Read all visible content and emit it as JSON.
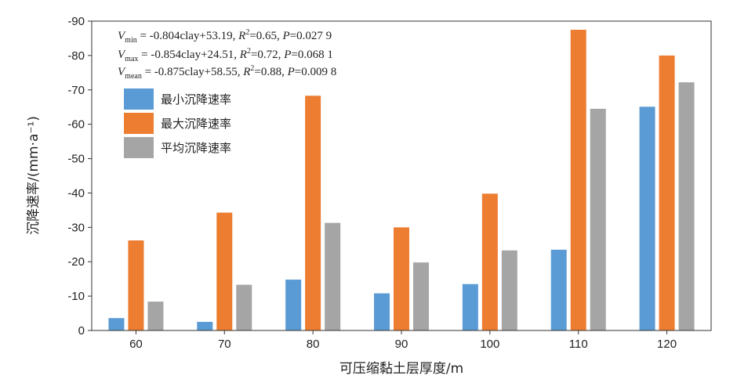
{
  "chart_data": {
    "type": "bar",
    "categories": [
      "60",
      "70",
      "80",
      "90",
      "100",
      "110",
      "120"
    ],
    "series": [
      {
        "name": "最小沉降速率",
        "color": "#5b9bd5",
        "values": [
          -3.6,
          -2.5,
          -14.8,
          -10.8,
          -13.5,
          -23.5,
          -65.1
        ]
      },
      {
        "name": "最大沉降速率",
        "color": "#ed7d31",
        "values": [
          -26.2,
          -34.3,
          -68.3,
          -30.0,
          -39.8,
          -87.5,
          -80.0
        ]
      },
      {
        "name": "平均沉降速率",
        "color": "#a5a5a5",
        "values": [
          -8.4,
          -13.3,
          -31.3,
          -19.8,
          -23.3,
          -64.5,
          -72.2
        ]
      }
    ],
    "xlabel": "可压缩黏土层厚度/m",
    "ylabel": "沉降速率/(mm·a⁻¹)",
    "ylim": [
      0,
      -90
    ],
    "yticks": [
      "0",
      "-10",
      "-20",
      "-30",
      "-40",
      "-50",
      "-60",
      "-70",
      "-80",
      "-90"
    ],
    "grid": false,
    "legend_position": "top-left",
    "equations": [
      {
        "var": "V",
        "sub": "min",
        "op": " = ",
        "body": "-0.804clay+53.19, ",
        "r_label": "R",
        "r_sup": "2",
        "r_val": "=0.65, ",
        "p_label": "P",
        "p_val": "=0.027 9"
      },
      {
        "var": "V",
        "sub": "max",
        "op": " = ",
        "body": "-0.854clay+24.51, ",
        "r_label": "R",
        "r_sup": "2",
        "r_val": "=0.72, ",
        "p_label": "P",
        "p_val": "=0.068 1"
      },
      {
        "var": "V",
        "sub": "mean",
        "op": " = ",
        "body": "-0.875clay+58.55, ",
        "r_label": "R",
        "r_sup": "2",
        "r_val": "=0.88, ",
        "p_label": "P",
        "p_val": "=0.009 8"
      }
    ]
  }
}
